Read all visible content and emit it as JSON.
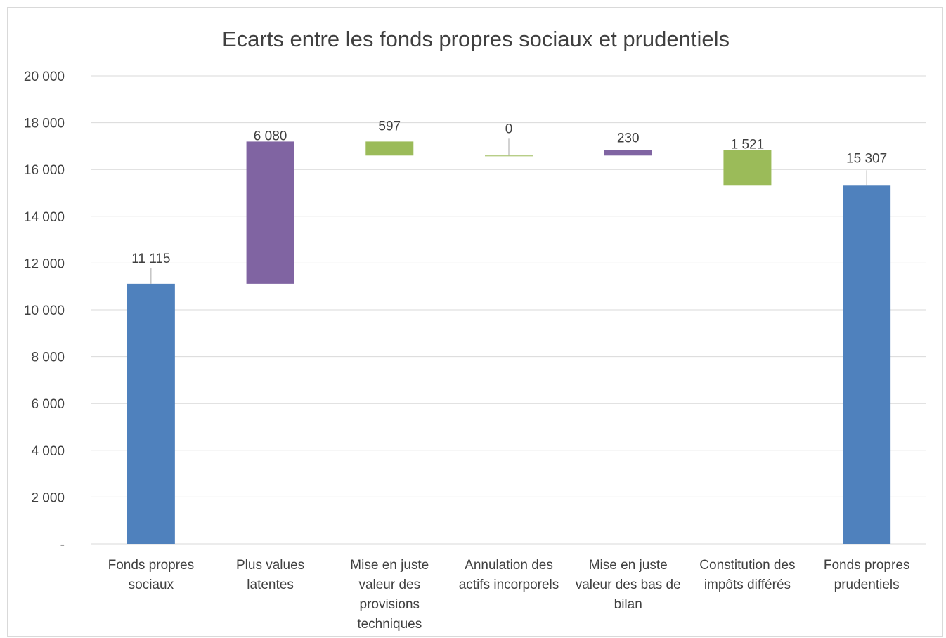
{
  "chart_data": {
    "type": "waterfall",
    "title": "Ecarts entre les fonds propres sociaux et prudentiels",
    "ylim": [
      0,
      20000
    ],
    "y_ticks": [
      {
        "value": 0,
        "label": "-"
      },
      {
        "value": 2000,
        "label": "2 000"
      },
      {
        "value": 4000,
        "label": "4 000"
      },
      {
        "value": 6000,
        "label": "6 000"
      },
      {
        "value": 8000,
        "label": "8 000"
      },
      {
        "value": 10000,
        "label": "10 000"
      },
      {
        "value": 12000,
        "label": "12 000"
      },
      {
        "value": 14000,
        "label": "14 000"
      },
      {
        "value": 16000,
        "label": "16 000"
      },
      {
        "value": 18000,
        "label": "18 000"
      },
      {
        "value": 20000,
        "label": "20 000"
      }
    ],
    "grid": true,
    "categories": [
      [
        "Fonds propres",
        "sociaux"
      ],
      [
        "Plus values",
        "latentes"
      ],
      [
        "Mise en juste",
        "valeur des",
        "provisions",
        "techniques"
      ],
      [
        "Annulation des",
        "actifs incorporels"
      ],
      [
        "Mise en juste",
        "valeur des bas de",
        "bilan"
      ],
      [
        "Constitution des",
        "impôts différés"
      ],
      [
        "Fonds propres",
        "prudentiels"
      ]
    ],
    "bars": [
      {
        "bottom": 0,
        "top": 11115,
        "label": "11 115",
        "color": "#4f81bd"
      },
      {
        "bottom": 11115,
        "top": 17195,
        "label": "6 080",
        "color": "#8064a2"
      },
      {
        "bottom": 16598,
        "top": 17195,
        "label": "597",
        "color": "#9bbb59"
      },
      {
        "bottom": 16598,
        "top": 16598,
        "label": "0",
        "color": "#9bbb59"
      },
      {
        "bottom": 16598,
        "top": 16828,
        "label": "230",
        "color": "#8064a2"
      },
      {
        "bottom": 15307,
        "top": 16828,
        "label": "1 521",
        "color": "#9bbb59"
      },
      {
        "bottom": 0,
        "top": 15307,
        "label": "15 307",
        "color": "#4f81bd"
      }
    ]
  }
}
